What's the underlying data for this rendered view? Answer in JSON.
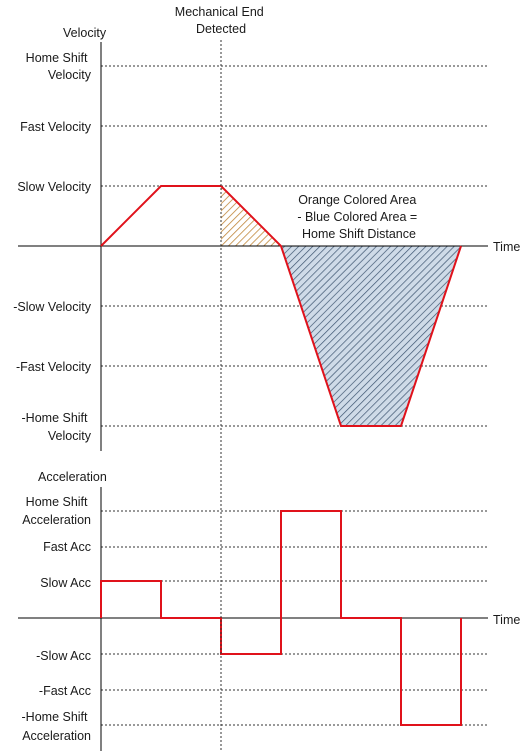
{
  "colors": {
    "profile": "#e0121b",
    "orange_area": "#c0873b",
    "blue_area": "#cfdbe8",
    "blue_hatch": "#3d5570"
  },
  "header": {
    "mechanical_end_line1": "Mechanical End",
    "mechanical_end_line2": "Detected"
  },
  "velocity_chart": {
    "axis_label": "Velocity",
    "time_label": "Time",
    "levels": [
      {
        "key": "home_shift",
        "lines": [
          "Home Shift",
          "Velocity"
        ]
      },
      {
        "key": "fast",
        "lines": [
          "Fast Velocity"
        ]
      },
      {
        "key": "slow",
        "lines": [
          "Slow Velocity"
        ]
      },
      {
        "key": "neg_slow",
        "lines": [
          "-Slow Velocity"
        ]
      },
      {
        "key": "neg_fast",
        "lines": [
          "-Fast Velocity"
        ]
      },
      {
        "key": "neg_home_shift",
        "lines": [
          "-Home Shift",
          "Velocity"
        ]
      }
    ],
    "annotation_lines": [
      "Orange Colored Area",
      "- Blue Colored Area =",
      "Home Shift Distance"
    ]
  },
  "acceleration_chart": {
    "axis_label": "Acceleration",
    "time_label": "Time",
    "levels": [
      {
        "key": "home_shift",
        "lines": [
          "Home Shift",
          "Acceleration"
        ]
      },
      {
        "key": "fast",
        "lines": [
          "Fast Acc"
        ]
      },
      {
        "key": "slow",
        "lines": [
          "Slow Acc"
        ]
      },
      {
        "key": "neg_slow",
        "lines": [
          "-Slow Acc"
        ]
      },
      {
        "key": "neg_fast",
        "lines": [
          "-Fast Acc"
        ]
      },
      {
        "key": "neg_home_shift",
        "lines": [
          "-Home Shift",
          "Acceleration"
        ]
      }
    ]
  }
}
